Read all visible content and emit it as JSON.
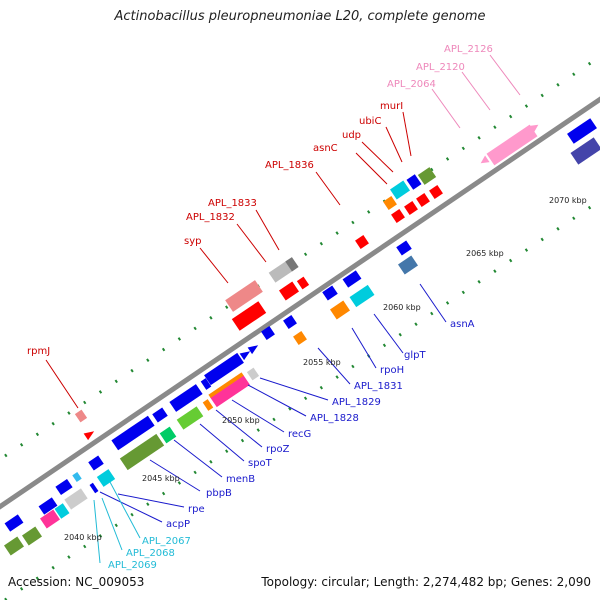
{
  "title": "Actinobacillus pleuropneumoniae L20, complete genome",
  "footer": {
    "accession": "Accession: NC_009053",
    "summary": "Topology: circular; Length: 2,274,482 bp; Genes: 2,090"
  },
  "colors": {
    "backbone": "#888888",
    "red_label": "#cc0000",
    "blue_label": "#1a1acc",
    "cyan_label": "#22bbd6",
    "pink_label": "#ee88bb",
    "tick": "#228833"
  },
  "kbp_labels": [
    "2040 kbp",
    "2045 kbp",
    "2050 kbp",
    "2055 kbp",
    "2060 kbp",
    "2065 kbp",
    "2070 kbp"
  ],
  "labels": {
    "red": [
      "rpmJ",
      "syp",
      "APL_1832",
      "APL_1833",
      "APL_1836",
      "asnC",
      "udp",
      "ubiC",
      "murI"
    ],
    "pink": [
      "APL_2064",
      "APL_2120",
      "APL_2126"
    ],
    "blue": [
      "asnA",
      "glpT",
      "rpoH",
      "APL_1831",
      "APL_1829",
      "APL_1828",
      "recG",
      "rpoZ",
      "spoT",
      "menB",
      "pbpB",
      "rpe",
      "acpP"
    ],
    "cyan": [
      "APL_2067",
      "APL_2068",
      "APL_2069"
    ]
  }
}
